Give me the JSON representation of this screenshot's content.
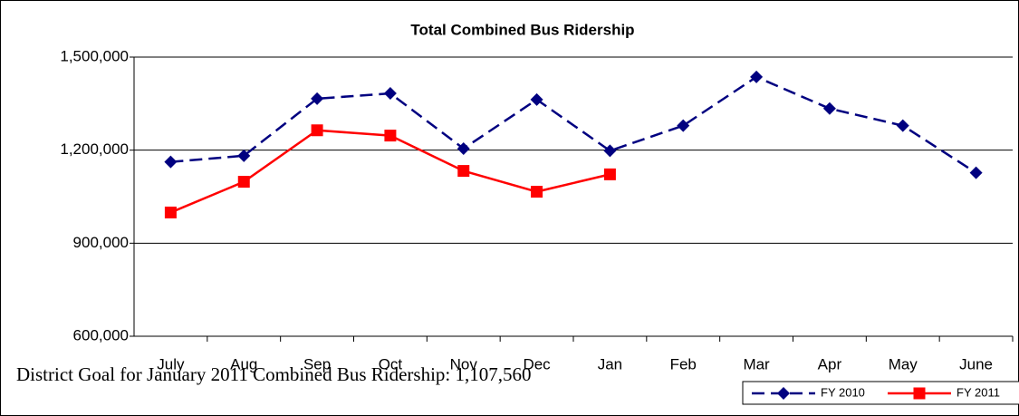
{
  "chart_data": {
    "type": "line",
    "title": "Total Combined Bus Ridership",
    "categories": [
      "July",
      "Aug",
      "Sep",
      "Oct",
      "Nov",
      "Dec",
      "Jan",
      "Feb",
      "Mar",
      "Apr",
      "May",
      "June"
    ],
    "series": [
      {
        "name": "FY 2010",
        "color": "#000080",
        "values": [
          1162000,
          1182000,
          1366000,
          1383000,
          1205000,
          1363000,
          1198000,
          1279000,
          1436000,
          1334000,
          1279000,
          1127000
        ]
      },
      {
        "name": "FY 2011",
        "color": "#ff0000",
        "values": [
          999000,
          1098000,
          1264000,
          1247000,
          1133000,
          1066000,
          1122000,
          null,
          null,
          null,
          null,
          null
        ]
      }
    ],
    "ylim": [
      600000,
      1500000
    ],
    "yticks": [
      {
        "value": 600000,
        "label": "600,000"
      },
      {
        "value": 900000,
        "label": "900,000"
      },
      {
        "value": 1200000,
        "label": "1,200,000"
      },
      {
        "value": 1500000,
        "label": "1,500,000"
      }
    ],
    "grid": true,
    "legend": "bottom-right",
    "annotation": "District Goal for January 2011 Combined Bus Ridership: 1,107,560"
  }
}
